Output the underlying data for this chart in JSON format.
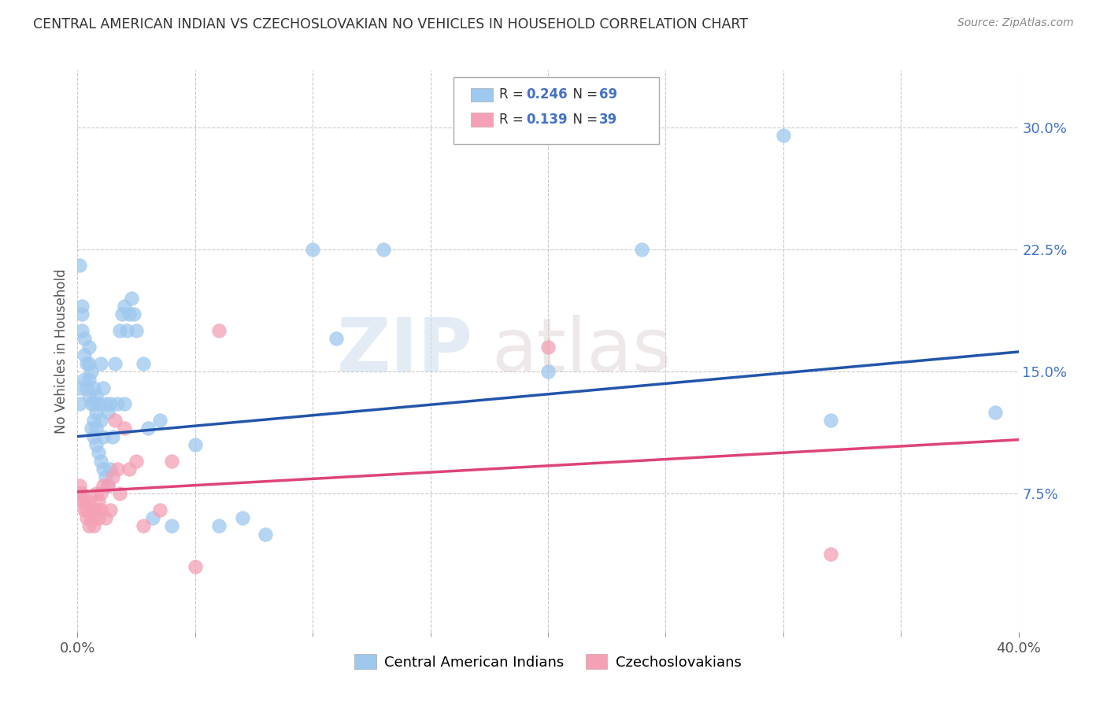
{
  "title": "CENTRAL AMERICAN INDIAN VS CZECHOSLOVAKIAN NO VEHICLES IN HOUSEHOLD CORRELATION CHART",
  "source": "Source: ZipAtlas.com",
  "ylabel": "No Vehicles in Household",
  "y_ticks": [
    0.075,
    0.15,
    0.225,
    0.3
  ],
  "y_tick_labels": [
    "7.5%",
    "15.0%",
    "22.5%",
    "30.0%"
  ],
  "x_min": 0.0,
  "x_max": 0.4,
  "y_min": -0.01,
  "y_max": 0.335,
  "color_blue": "#9EC8EE",
  "color_pink": "#F4A0B5",
  "line_color_blue": "#2255AA",
  "line_color_pink": "#DD4477",
  "background_color": "#FFFFFF",
  "watermark_zip": "ZIP",
  "watermark_atlas": "atlas",
  "label_blue": "Central American Indians",
  "label_pink": "Czechoslovakians",
  "blue_line_x0": 0.0,
  "blue_line_y0": 0.11,
  "blue_line_x1": 0.4,
  "blue_line_y1": 0.162,
  "pink_line_x0": 0.0,
  "pink_line_y0": 0.076,
  "pink_line_x1": 0.4,
  "pink_line_y1": 0.108,
  "blue_x": [
    0.001,
    0.001,
    0.001,
    0.002,
    0.002,
    0.002,
    0.003,
    0.003,
    0.003,
    0.004,
    0.004,
    0.005,
    0.005,
    0.005,
    0.005,
    0.006,
    0.006,
    0.006,
    0.007,
    0.007,
    0.007,
    0.007,
    0.008,
    0.008,
    0.008,
    0.008,
    0.009,
    0.009,
    0.01,
    0.01,
    0.01,
    0.011,
    0.011,
    0.011,
    0.012,
    0.012,
    0.013,
    0.013,
    0.014,
    0.014,
    0.015,
    0.016,
    0.017,
    0.018,
    0.019,
    0.02,
    0.02,
    0.021,
    0.022,
    0.023,
    0.024,
    0.025,
    0.028,
    0.03,
    0.032,
    0.035,
    0.04,
    0.05,
    0.06,
    0.07,
    0.08,
    0.1,
    0.11,
    0.13,
    0.2,
    0.24,
    0.3,
    0.32,
    0.39
  ],
  "blue_y": [
    0.13,
    0.14,
    0.215,
    0.175,
    0.185,
    0.19,
    0.145,
    0.16,
    0.17,
    0.14,
    0.155,
    0.135,
    0.145,
    0.155,
    0.165,
    0.115,
    0.13,
    0.15,
    0.11,
    0.12,
    0.13,
    0.14,
    0.105,
    0.115,
    0.125,
    0.135,
    0.1,
    0.13,
    0.095,
    0.12,
    0.155,
    0.09,
    0.11,
    0.14,
    0.085,
    0.13,
    0.08,
    0.125,
    0.09,
    0.13,
    0.11,
    0.155,
    0.13,
    0.175,
    0.185,
    0.19,
    0.13,
    0.175,
    0.185,
    0.195,
    0.185,
    0.175,
    0.155,
    0.115,
    0.06,
    0.12,
    0.055,
    0.105,
    0.055,
    0.06,
    0.05,
    0.225,
    0.17,
    0.225,
    0.15,
    0.225,
    0.295,
    0.12,
    0.125
  ],
  "pink_x": [
    0.001,
    0.001,
    0.001,
    0.002,
    0.002,
    0.003,
    0.003,
    0.004,
    0.004,
    0.005,
    0.005,
    0.006,
    0.006,
    0.007,
    0.007,
    0.008,
    0.008,
    0.009,
    0.009,
    0.01,
    0.01,
    0.011,
    0.012,
    0.013,
    0.014,
    0.015,
    0.016,
    0.017,
    0.018,
    0.02,
    0.022,
    0.025,
    0.028,
    0.035,
    0.04,
    0.05,
    0.06,
    0.2,
    0.32
  ],
  "pink_y": [
    0.075,
    0.08,
    0.075,
    0.07,
    0.075,
    0.065,
    0.07,
    0.06,
    0.065,
    0.055,
    0.07,
    0.06,
    0.065,
    0.055,
    0.065,
    0.065,
    0.075,
    0.06,
    0.07,
    0.065,
    0.075,
    0.08,
    0.06,
    0.08,
    0.065,
    0.085,
    0.12,
    0.09,
    0.075,
    0.115,
    0.09,
    0.095,
    0.055,
    0.065,
    0.095,
    0.03,
    0.175,
    0.165,
    0.038
  ]
}
